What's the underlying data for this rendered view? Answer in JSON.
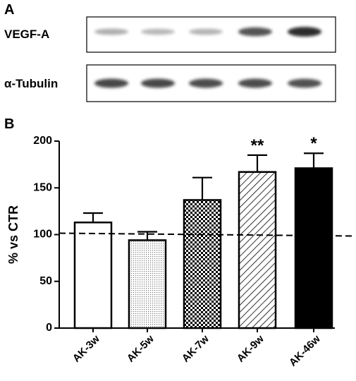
{
  "panels": {
    "a_label": "A",
    "b_label": "B"
  },
  "blot": {
    "rows": [
      {
        "label": "VEGF-A",
        "band_intensity": [
          0.38,
          0.32,
          0.35,
          0.82,
          0.98
        ]
      },
      {
        "label": "α-Tubulin",
        "band_intensity": [
          0.88,
          0.88,
          0.86,
          0.86,
          0.84
        ]
      }
    ]
  },
  "chart_data": {
    "type": "bar",
    "title": "",
    "xlabel": "",
    "ylabel": "% vs CTR",
    "ylim": [
      0,
      200
    ],
    "yticks": [
      0,
      50,
      100,
      150,
      200
    ],
    "categories": [
      "AK-3w",
      "AK-5w",
      "AK-7w",
      "AK-9w",
      "AK-46w"
    ],
    "values": [
      113,
      94,
      137,
      167,
      171
    ],
    "errors": [
      10,
      9,
      24,
      18,
      16
    ],
    "annotations": [
      "",
      "",
      "",
      "**",
      "*"
    ],
    "fills": [
      "white",
      "dots",
      "checker",
      "hatch",
      "black"
    ],
    "reference_line": 100,
    "grid": false,
    "legend": "none"
  }
}
